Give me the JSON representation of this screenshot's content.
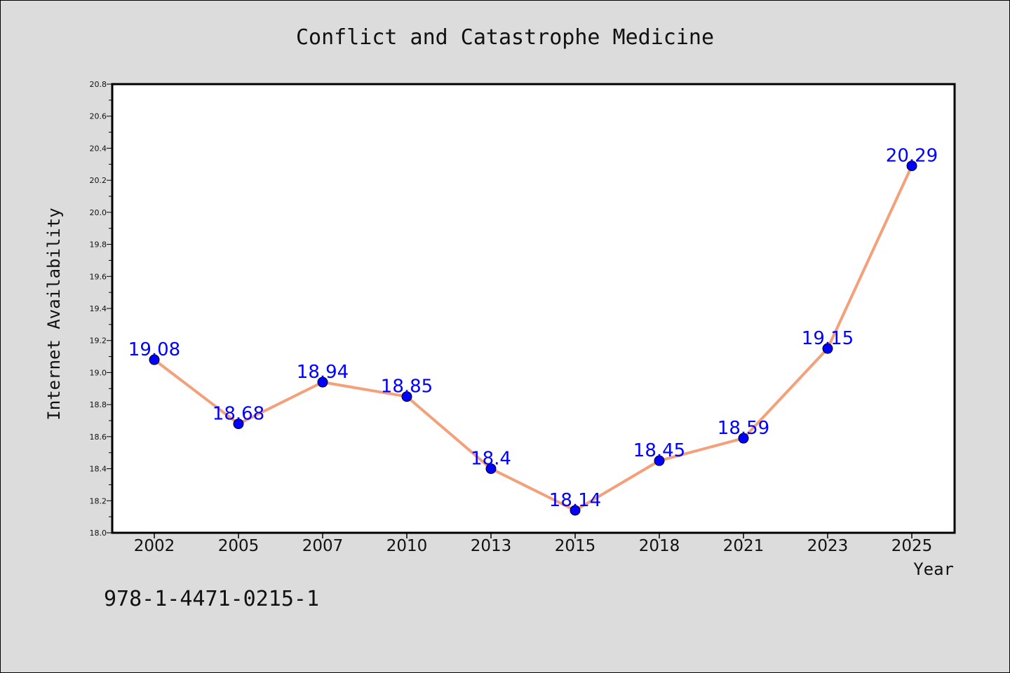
{
  "chart_data": {
    "type": "line",
    "title": "Conflict and Catastrophe Medicine",
    "xlabel": "Year",
    "ylabel": "Internet Availability",
    "categories": [
      "2002",
      "2005",
      "2007",
      "2010",
      "2013",
      "2015",
      "2018",
      "2021",
      "2023",
      "2025"
    ],
    "series": [
      {
        "values": [
          19.08,
          18.68,
          18.94,
          18.85,
          18.4,
          18.14,
          18.45,
          18.59,
          19.15,
          20.29
        ]
      }
    ],
    "data_labels": [
      "19.08",
      "18.68",
      "18.94",
      "18.85",
      "18.4",
      "18.14",
      "18.45",
      "18.59",
      "19.15",
      "20.29"
    ],
    "ylim": [
      18.0,
      20.8
    ],
    "yticks": [
      "18.0",
      "18.2",
      "18.4",
      "18.6",
      "18.8",
      "19.0",
      "19.2",
      "19.4",
      "19.6",
      "19.8",
      "20.0",
      "20.2",
      "20.4",
      "20.6",
      "20.8"
    ],
    "grid": false,
    "line_color": "#f4a07a",
    "marker_color": "#0000ff",
    "label_color": "#0000ff",
    "plot_background": "#ffffff",
    "figure_background": "#dcdcdc"
  },
  "footer": {
    "isbn": "978-1-4471-0215-1"
  }
}
